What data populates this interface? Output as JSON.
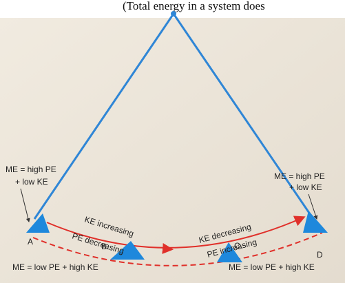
{
  "caption": "(Total energy in a system does",
  "left_top_label": {
    "line1": "ME = high PE",
    "line2": "+ low KE"
  },
  "right_top_label": {
    "line1": "ME = high PE",
    "line2": "+ low KE"
  },
  "arc_labels": {
    "ke_increasing": "KE increasing",
    "pe_decreasing": "PE decreasing",
    "ke_decreasing": "KE decreasing",
    "pe_increasing": "PE increasing"
  },
  "points": {
    "a": "A",
    "b": "B",
    "c": "C",
    "d": "D"
  },
  "left_bottom_label": "ME = low PE + high KE",
  "right_bottom_label": "ME = low PE + high KE"
}
